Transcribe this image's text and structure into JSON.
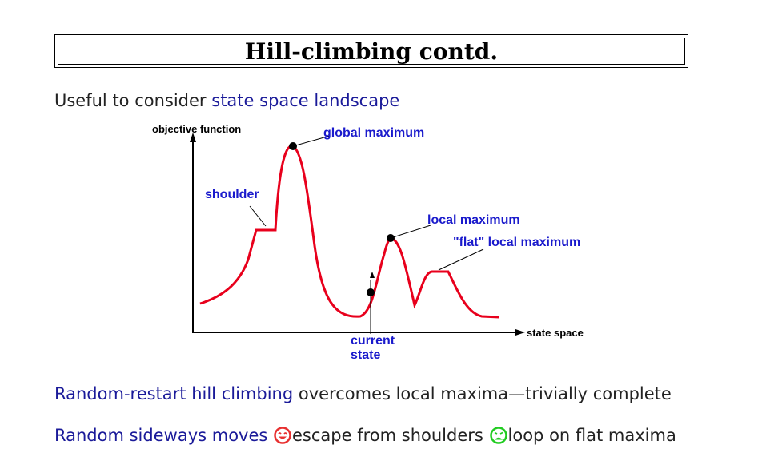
{
  "title": "Hill-climbing contd.",
  "intro": {
    "prefix": "Useful to consider ",
    "highlight": "state space landscape"
  },
  "diagram": {
    "y_axis_label": "objective function",
    "x_axis_label": "state space",
    "labels": {
      "global_maximum": "global maximum",
      "shoulder": "shoulder",
      "local_maximum": "local maximum",
      "flat_local_maximum": "\"flat\" local maximum",
      "current_state_line1": "current",
      "current_state_line2": "state"
    }
  },
  "bullet1": {
    "highlight": "Random-restart hill climbing",
    "rest": " overcomes local maxima—trivially complete"
  },
  "bullet2": {
    "highlight": "Random sideways moves",
    "happy_icon": "smiley-happy-icon",
    "mid": "escape from shoulders",
    "sad_icon": "smiley-sad-icon",
    "end": "loop on flat maxima"
  },
  "colors": {
    "curve": "#e8001c",
    "label_blue": "#1a1acc",
    "text_blue": "#1a1a99",
    "happy": "#e83030",
    "sad": "#22cc22"
  }
}
